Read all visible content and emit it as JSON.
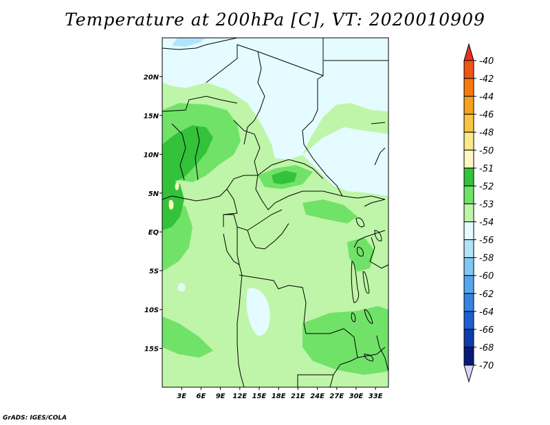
{
  "title": "Temperature at 200hPa [C], VT: 2020010909",
  "credit": "GrADS: IGES/COLA",
  "map": {
    "lon_range": [
      0,
      35
    ],
    "lat_range": [
      -20,
      25
    ],
    "lon_ticks": [
      "3E",
      "6E",
      "9E",
      "12E",
      "15E",
      "18E",
      "21E",
      "24E",
      "27E",
      "30E",
      "33E"
    ],
    "lon_tick_values": [
      3,
      6,
      9,
      12,
      15,
      18,
      21,
      24,
      27,
      30,
      33
    ],
    "lat_ticks": [
      "20N",
      "15N",
      "10N",
      "5N",
      "EQ",
      "5S",
      "10S",
      "15S"
    ],
    "lat_tick_values": [
      20,
      15,
      10,
      5,
      0,
      -5,
      -10,
      -15
    ],
    "background_color": "#bff5a8"
  },
  "colorbar": {
    "labels": [
      "-40",
      "-42",
      "-44",
      "-46",
      "-48",
      "-50",
      "-51",
      "-52",
      "-53",
      "-54",
      "-56",
      "-58",
      "-60",
      "-62",
      "-64",
      "-66",
      "-68",
      "-70"
    ],
    "colors": [
      "#e83020",
      "#f05514",
      "#f57a0c",
      "#f7a21e",
      "#f8c542",
      "#fbe888",
      "#fff7c0",
      "#33c23a",
      "#71e268",
      "#bff5a8",
      "#e4fcff",
      "#b2e4f8",
      "#82c6f4",
      "#56a6ee",
      "#3684e2",
      "#1e5ed0",
      "#0e3ca8",
      "#0a1a78"
    ],
    "under_color": "#ddd6f8"
  }
}
